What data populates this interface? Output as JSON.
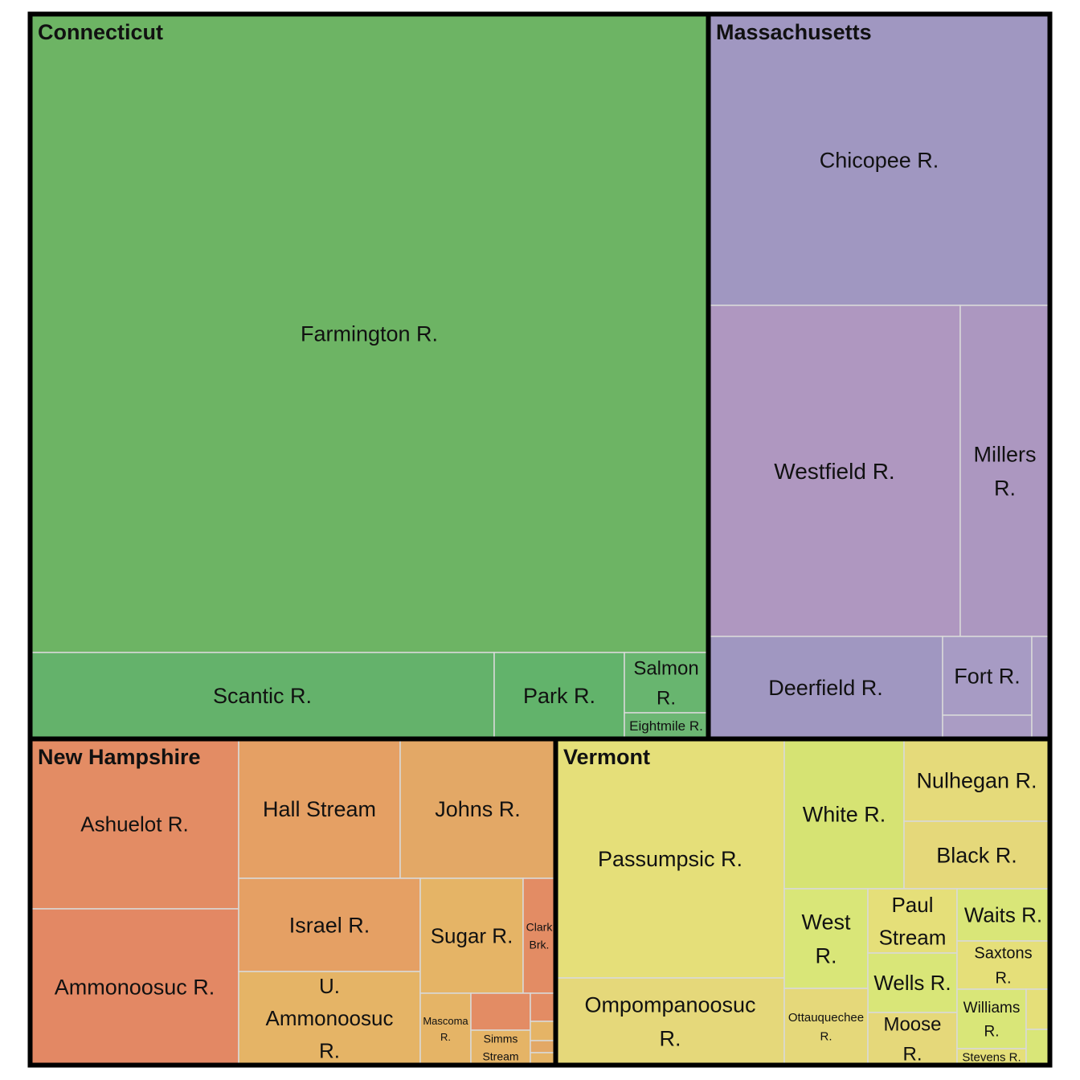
{
  "chart_data": {
    "type": "treemap",
    "groups": [
      {
        "name": "Connecticut",
        "color": "#6db464",
        "items": [
          {
            "name": "Farmington R.",
            "color": "#6db464"
          },
          {
            "name": "Scantic R.",
            "color": "#64b26b"
          },
          {
            "name": "Park R.",
            "color": "#62b36b"
          },
          {
            "name": "Salmon R.",
            "color": "#68b56f"
          },
          {
            "name": "Eightmile R.",
            "color": "#6cb673"
          }
        ]
      },
      {
        "name": "Massachusetts",
        "color": "#a097c1",
        "items": [
          {
            "name": "Chicopee R.",
            "color": "#a097c1"
          },
          {
            "name": "Westfield R.",
            "color": "#af97c0"
          },
          {
            "name": "Millers R.",
            "color": "#ac97c0"
          },
          {
            "name": "Deerfield R.",
            "color": "#a097c1"
          },
          {
            "name": "Fort R.",
            "color": "#a79bc4"
          },
          {
            "name": "",
            "color": "#aa9cc4"
          },
          {
            "name": "",
            "color": "#a99bc3"
          }
        ]
      },
      {
        "name": "New Hampshire",
        "color": "#e38c64",
        "items": [
          {
            "name": "Ashuelot R.",
            "color": "#e38c64"
          },
          {
            "name": "Ammonoosuc R.",
            "color": "#e38864"
          },
          {
            "name": "Hall Stream",
            "color": "#e5a064"
          },
          {
            "name": "Johns R.",
            "color": "#e3a866"
          },
          {
            "name": "Israel R.",
            "color": "#e5a064"
          },
          {
            "name": "U. Ammonoosuc R.",
            "color": "#e5b466"
          },
          {
            "name": "Sugar R.",
            "color": "#e5b466"
          },
          {
            "name": "Clark Brk.",
            "color": "#e38c64"
          },
          {
            "name": "Mascoma R.",
            "color": "#e5b466"
          },
          {
            "name": "",
            "color": "#e38c64"
          },
          {
            "name": "Simms Stream",
            "color": "#e5b466"
          },
          {
            "name": "",
            "color": "#e38c64"
          },
          {
            "name": "",
            "color": "#e5b466"
          },
          {
            "name": "",
            "color": "#e3a866"
          },
          {
            "name": "",
            "color": "#e5b466"
          }
        ]
      },
      {
        "name": "Vermont",
        "color": "#e5df79",
        "items": [
          {
            "name": "Passumpsic R.",
            "color": "#e5df79"
          },
          {
            "name": "Ompompanoosuc R.",
            "color": "#e5d87a"
          },
          {
            "name": "White R.",
            "color": "#d6e373"
          },
          {
            "name": "Nulhegan R.",
            "color": "#e5da7a"
          },
          {
            "name": "Black R.",
            "color": "#e5d87a"
          },
          {
            "name": "West R.",
            "color": "#d9e678"
          },
          {
            "name": "Paul Stream",
            "color": "#e5df79"
          },
          {
            "name": "Wells R.",
            "color": "#d9e678"
          },
          {
            "name": "Waits R.",
            "color": "#d9e678"
          },
          {
            "name": "Ottauquechee R.",
            "color": "#e5d87a"
          },
          {
            "name": "Moose R.",
            "color": "#e5d87a"
          },
          {
            "name": "Saxtons R.",
            "color": "#e5df79"
          },
          {
            "name": "Williams R.",
            "color": "#d9e678"
          },
          {
            "name": "Stevens R.",
            "color": "#e5df79"
          },
          {
            "name": "",
            "color": "#e5df79"
          },
          {
            "name": "",
            "color": "#d9e678"
          }
        ]
      }
    ]
  }
}
